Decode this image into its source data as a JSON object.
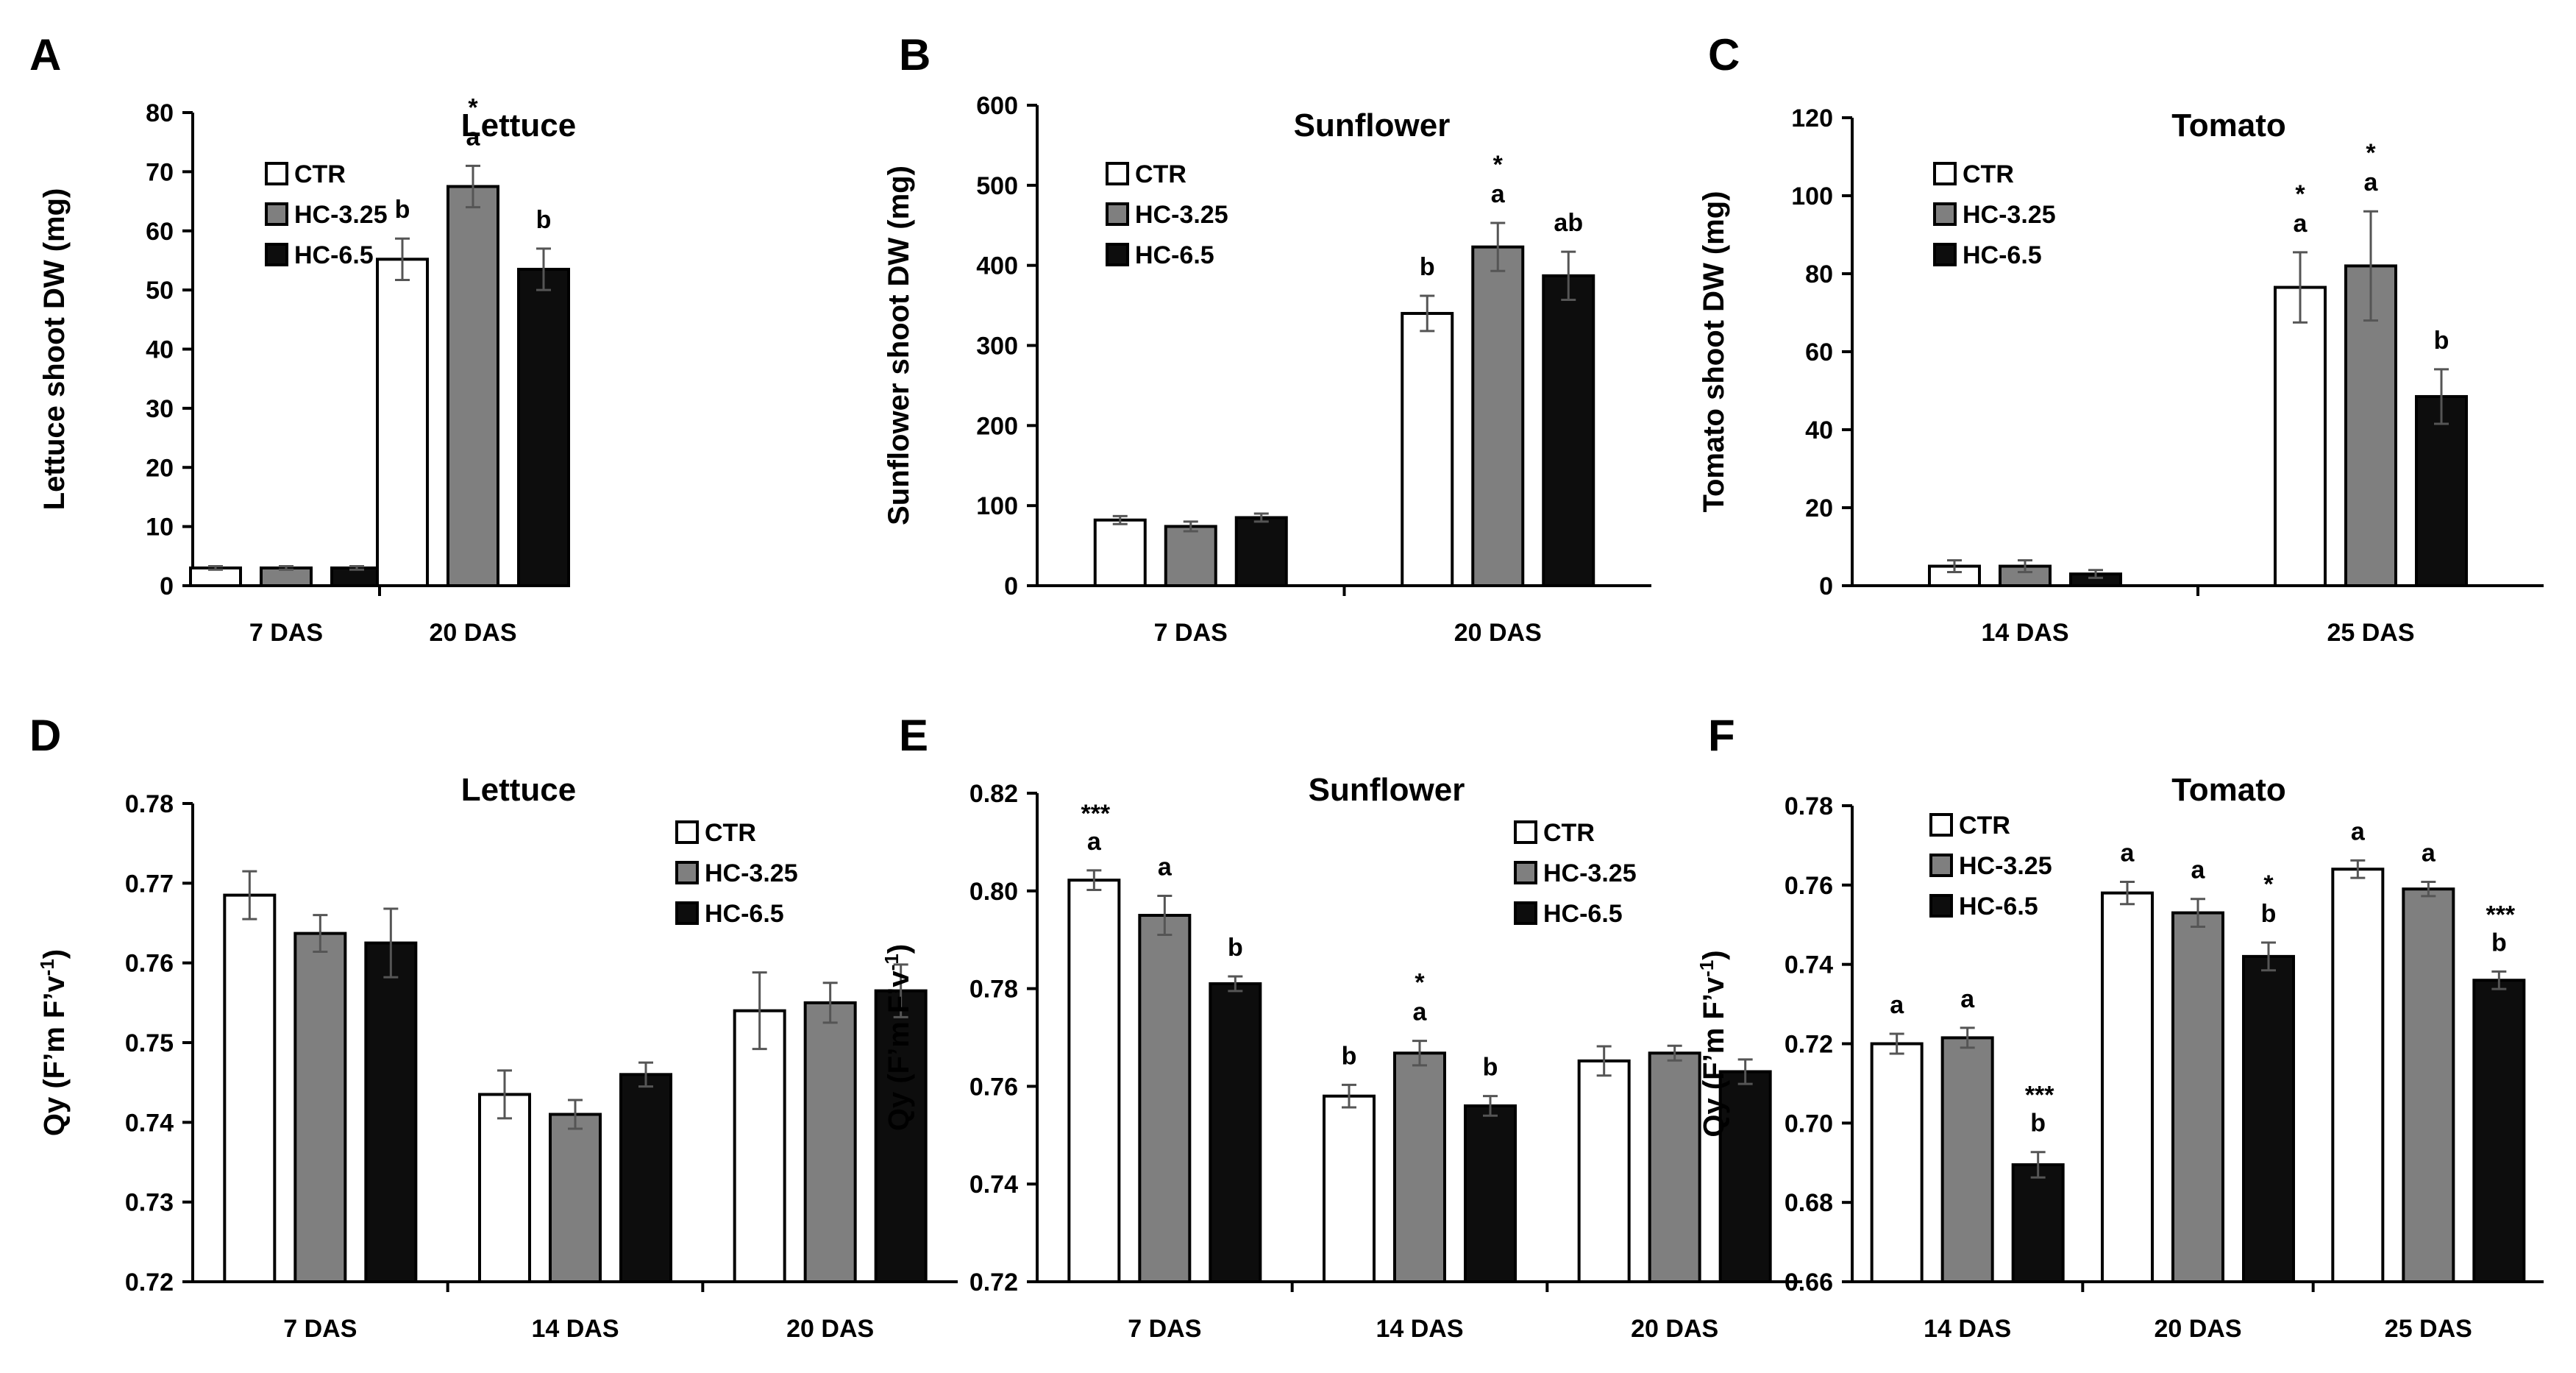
{
  "chart_data": [
    {
      "panel": "A",
      "type": "bar",
      "title": "Lettuce",
      "ylabel": "Lettuce shoot DW (mg)",
      "xlabel": "",
      "ylim": [
        0,
        80
      ],
      "yticks": [
        0,
        10,
        20,
        30,
        40,
        50,
        60,
        70,
        80
      ],
      "tick_decimals": 0,
      "legend": "top-left",
      "categories": [
        "7 DAS",
        "20 DAS"
      ],
      "series": [
        {
          "name": "CTR",
          "color": "#ffffff",
          "values": [
            3.0,
            55.2
          ],
          "errors": [
            0.3,
            3.5
          ],
          "letters": [
            "",
            "b"
          ],
          "stars": [
            "",
            ""
          ]
        },
        {
          "name": "HC-3.25",
          "color": "#7f7f7f",
          "values": [
            3.0,
            67.5
          ],
          "errors": [
            0.3,
            3.5
          ],
          "letters": [
            "",
            "a"
          ],
          "stars": [
            "",
            "*"
          ]
        },
        {
          "name": "HC-6.5",
          "color": "#0d0d0d",
          "values": [
            3.0,
            53.5
          ],
          "errors": [
            0.3,
            3.5
          ],
          "letters": [
            "",
            "b"
          ],
          "stars": [
            "",
            ""
          ]
        }
      ]
    },
    {
      "panel": "B",
      "type": "bar",
      "title": "Sunflower",
      "ylabel": "Sunflower shoot DW (mg)",
      "xlabel": "",
      "ylim": [
        0,
        600
      ],
      "yticks": [
        0,
        100,
        200,
        300,
        400,
        500,
        600
      ],
      "tick_decimals": 0,
      "legend": "top-left",
      "categories": [
        "7 DAS",
        "20 DAS"
      ],
      "series": [
        {
          "name": "CTR",
          "color": "#ffffff",
          "values": [
            82,
            340
          ],
          "errors": [
            5,
            22
          ],
          "letters": [
            "",
            "b"
          ],
          "stars": [
            "",
            ""
          ]
        },
        {
          "name": "HC-3.25",
          "color": "#7f7f7f",
          "values": [
            74,
            423
          ],
          "errors": [
            6,
            30
          ],
          "letters": [
            "",
            "a"
          ],
          "stars": [
            "",
            "*"
          ]
        },
        {
          "name": "HC-6.5",
          "color": "#0d0d0d",
          "values": [
            85,
            387
          ],
          "errors": [
            5,
            30
          ],
          "letters": [
            "",
            "ab"
          ],
          "stars": [
            "",
            ""
          ]
        }
      ]
    },
    {
      "panel": "C",
      "type": "bar",
      "title": "Tomato",
      "ylabel": "Tomato shoot DW (mg)",
      "xlabel": "",
      "ylim": [
        0,
        120
      ],
      "yticks": [
        0,
        20,
        40,
        60,
        80,
        100,
        120
      ],
      "tick_decimals": 0,
      "legend": "top-left",
      "categories": [
        "14 DAS",
        "25 DAS"
      ],
      "series": [
        {
          "name": "CTR",
          "color": "#ffffff",
          "values": [
            5.0,
            76.5
          ],
          "errors": [
            1.5,
            9
          ],
          "letters": [
            "",
            "a"
          ],
          "stars": [
            "",
            "*"
          ]
        },
        {
          "name": "HC-3.25",
          "color": "#7f7f7f",
          "values": [
            5.0,
            82.0
          ],
          "errors": [
            1.5,
            14
          ],
          "letters": [
            "",
            "a"
          ],
          "stars": [
            "",
            "*"
          ]
        },
        {
          "name": "HC-6.5",
          "color": "#0d0d0d",
          "values": [
            3.0,
            48.5
          ],
          "errors": [
            1.0,
            7
          ],
          "letters": [
            "",
            "b"
          ],
          "stars": [
            "",
            ""
          ]
        }
      ]
    },
    {
      "panel": "D",
      "type": "bar",
      "title": "Lettuce",
      "ylabel": "Qy (F’m F’v-1)",
      "xlabel": "",
      "ylim": [
        0.72,
        0.78
      ],
      "yticks": [
        0.72,
        0.73,
        0.74,
        0.75,
        0.76,
        0.77,
        0.78
      ],
      "tick_decimals": 2,
      "legend": "top-right",
      "categories": [
        "7 DAS",
        "14 DAS",
        "20 DAS"
      ],
      "series": [
        {
          "name": "CTR",
          "color": "#ffffff",
          "values": [
            0.7685,
            0.7435,
            0.754
          ],
          "errors": [
            0.003,
            0.003,
            0.0048
          ],
          "letters": [
            "",
            "",
            ""
          ],
          "stars": [
            "",
            "",
            ""
          ]
        },
        {
          "name": "HC-3.25",
          "color": "#7f7f7f",
          "values": [
            0.7637,
            0.741,
            0.755
          ],
          "errors": [
            0.0023,
            0.0018,
            0.0025
          ],
          "letters": [
            "",
            "",
            ""
          ],
          "stars": [
            "",
            "",
            ""
          ]
        },
        {
          "name": "HC-6.5",
          "color": "#0d0d0d",
          "values": [
            0.7625,
            0.746,
            0.7565
          ],
          "errors": [
            0.0043,
            0.0015,
            0.0033
          ],
          "letters": [
            "",
            "",
            ""
          ],
          "stars": [
            "",
            "",
            ""
          ]
        }
      ]
    },
    {
      "panel": "E",
      "type": "bar",
      "title": "Sunflower",
      "ylabel": "Qy (F’m F’v-1)",
      "xlabel": "",
      "ylim": [
        0.72,
        0.82
      ],
      "yticks": [
        0.72,
        0.74,
        0.76,
        0.78,
        0.8,
        0.82
      ],
      "tick_decimals": 2,
      "legend": "top-right",
      "categories": [
        "7 DAS",
        "14 DAS",
        "20 DAS"
      ],
      "series": [
        {
          "name": "CTR",
          "color": "#ffffff",
          "values": [
            0.8022,
            0.758,
            0.7652
          ],
          "errors": [
            0.002,
            0.0023,
            0.003
          ],
          "letters": [
            "a",
            "b",
            ""
          ],
          "stars": [
            "***",
            "",
            ""
          ]
        },
        {
          "name": "HC-3.25",
          "color": "#7f7f7f",
          "values": [
            0.795,
            0.7668,
            0.7668
          ],
          "errors": [
            0.004,
            0.0025,
            0.0015
          ],
          "letters": [
            "a",
            "a",
            ""
          ],
          "stars": [
            "",
            "*",
            ""
          ]
        },
        {
          "name": "HC-6.5",
          "color": "#0d0d0d",
          "values": [
            0.781,
            0.756,
            0.763
          ],
          "errors": [
            0.0015,
            0.002,
            0.0025
          ],
          "letters": [
            "b",
            "b",
            ""
          ],
          "stars": [
            "",
            "",
            ""
          ]
        }
      ]
    },
    {
      "panel": "F",
      "type": "bar",
      "title": "Tomato",
      "ylabel": "Qy (F’m F’v-1)",
      "xlabel": "",
      "ylim": [
        0.66,
        0.78
      ],
      "yticks": [
        0.66,
        0.68,
        0.7,
        0.72,
        0.74,
        0.76,
        0.78
      ],
      "tick_decimals": 2,
      "legend": "top-left",
      "categories": [
        "14 DAS",
        "20 DAS",
        "25 DAS"
      ],
      "series": [
        {
          "name": "CTR",
          "color": "#ffffff",
          "values": [
            0.72,
            0.758,
            0.764
          ],
          "errors": [
            0.0025,
            0.0028,
            0.0022
          ],
          "letters": [
            "a",
            "a",
            "a"
          ],
          "stars": [
            "",
            "",
            ""
          ]
        },
        {
          "name": "HC-3.25",
          "color": "#7f7f7f",
          "values": [
            0.7215,
            0.753,
            0.759
          ],
          "errors": [
            0.0025,
            0.0035,
            0.0018
          ],
          "letters": [
            "a",
            "a",
            "a"
          ],
          "stars": [
            "",
            "",
            ""
          ]
        },
        {
          "name": "HC-6.5",
          "color": "#0d0d0d",
          "values": [
            0.6895,
            0.742,
            0.736
          ],
          "errors": [
            0.0032,
            0.0035,
            0.0022
          ],
          "letters": [
            "b",
            "b",
            "b"
          ],
          "stars": [
            "***",
            "*",
            "***"
          ]
        }
      ]
    }
  ]
}
